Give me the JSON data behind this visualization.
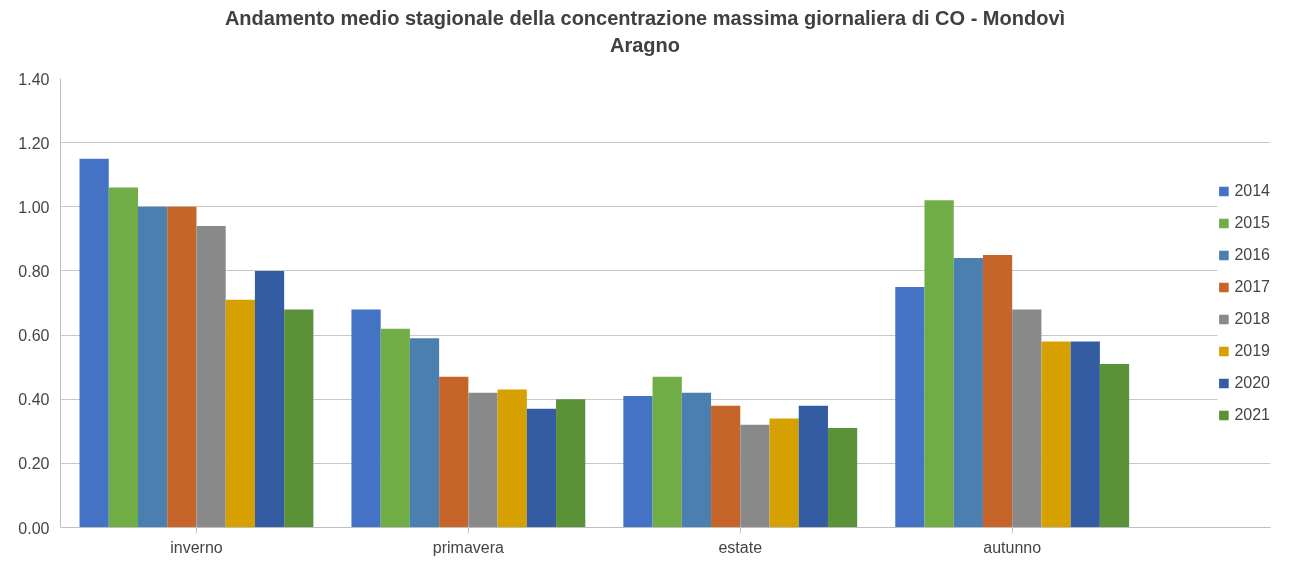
{
  "chart_data": {
    "type": "bar",
    "title": "Andamento medio stagionale della concentrazione massima giornaliera di CO - Mondovì\nAragno",
    "categories": [
      "inverno",
      "primavera",
      "estate",
      "autunno"
    ],
    "series": [
      {
        "name": "2014",
        "color": "#4472c4",
        "values": [
          1.15,
          0.68,
          0.41,
          0.75
        ]
      },
      {
        "name": "2015",
        "color": "#70ad47",
        "values": [
          1.06,
          0.62,
          0.47,
          1.02
        ]
      },
      {
        "name": "2016",
        "color": "#4a7fb0",
        "values": [
          1.0,
          0.59,
          0.42,
          0.84
        ]
      },
      {
        "name": "2017",
        "color": "#c5652a",
        "values": [
          1.0,
          0.47,
          0.38,
          0.85
        ]
      },
      {
        "name": "2018",
        "color": "#898989",
        "values": [
          0.94,
          0.42,
          0.32,
          0.68
        ]
      },
      {
        "name": "2019",
        "color": "#d6a100",
        "values": [
          0.71,
          0.43,
          0.34,
          0.58
        ]
      },
      {
        "name": "2020",
        "color": "#335ca3",
        "values": [
          0.8,
          0.37,
          0.38,
          0.58
        ]
      },
      {
        "name": "2021",
        "color": "#5b9138",
        "values": [
          0.68,
          0.4,
          0.31,
          0.51
        ]
      }
    ],
    "ylim": [
      0,
      1.4
    ],
    "yticks": [
      {
        "value": 0,
        "label": "0.00"
      },
      {
        "value": 0.2,
        "label": "0.20"
      },
      {
        "value": 0.4,
        "label": "0.40"
      },
      {
        "value": 0.6,
        "label": "0.60"
      },
      {
        "value": 0.8,
        "label": "0.80"
      },
      {
        "value": 1.0,
        "label": "1.00"
      },
      {
        "value": 1.2,
        "label": "1.20"
      },
      {
        "value": 1.4,
        "label": "1.40"
      }
    ],
    "grid": "y",
    "legend": "right"
  }
}
